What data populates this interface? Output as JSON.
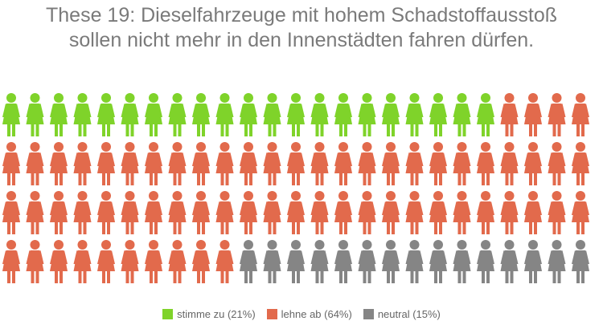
{
  "chart_data": {
    "type": "waffle",
    "title": "These 19: Dieselfahrzeuge mit hohem Schadstoffausstoß sollen nicht mehr in den Innenstädten fahren dürfen.",
    "series": [
      {
        "name": "stimme zu (21%)",
        "color": "#7fd32a",
        "values": [
          21
        ]
      },
      {
        "name": "lehne ab (64%)",
        "color": "#e26a4c",
        "values": [
          64
        ]
      },
      {
        "name": "neutral (15%)",
        "color": "#858585",
        "values": [
          15
        ]
      }
    ]
  }
}
